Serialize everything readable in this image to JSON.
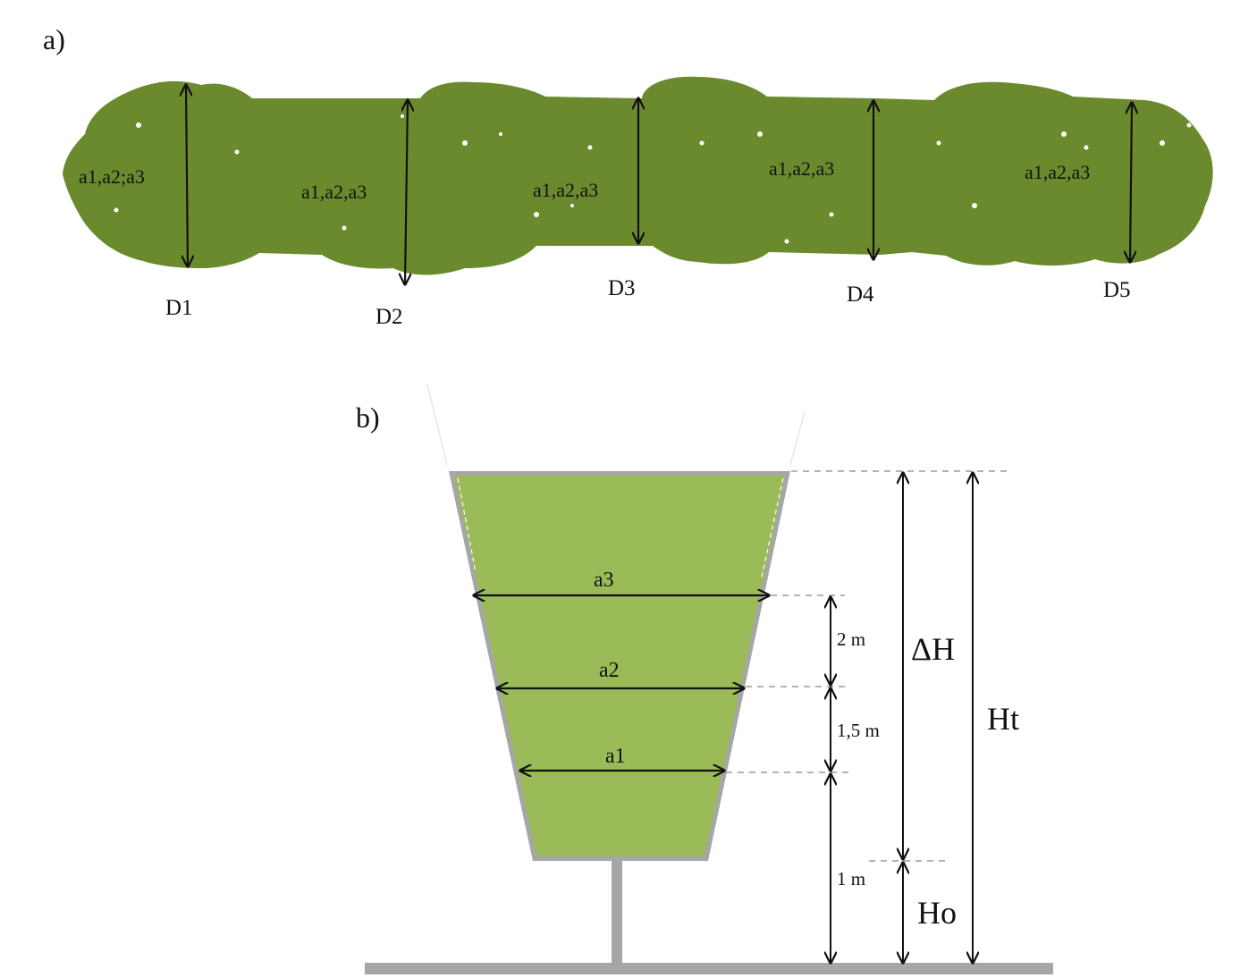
{
  "panel_a": {
    "label": "a)",
    "sections": [
      {
        "id": "D1",
        "label": "D1",
        "text": "a1,a2;a3"
      },
      {
        "id": "D2",
        "label": "D2",
        "text": "a1,a2,a3"
      },
      {
        "id": "D3",
        "label": "D3",
        "text": "a1,a2,a3"
      },
      {
        "id": "D4",
        "label": "D4",
        "text": "a1,a2,a3"
      },
      {
        "id": "D5",
        "label": "D5",
        "text": "a1,a2,a3"
      }
    ]
  },
  "panel_b": {
    "label": "b)",
    "widths": {
      "a1": "a1",
      "a2": "a2",
      "a3": "a3"
    },
    "intervals": {
      "top": "2 m",
      "mid": "1,5 m",
      "bottom": "1 m"
    },
    "heights": {
      "delta": "ΔH",
      "total": "Ht",
      "base": "Ho"
    }
  },
  "colors": {
    "hedge_dark": "#6b8a2e",
    "hedge_light": "#9bbb59",
    "outline_gray": "#a6a6a6",
    "line": "#111111"
  }
}
